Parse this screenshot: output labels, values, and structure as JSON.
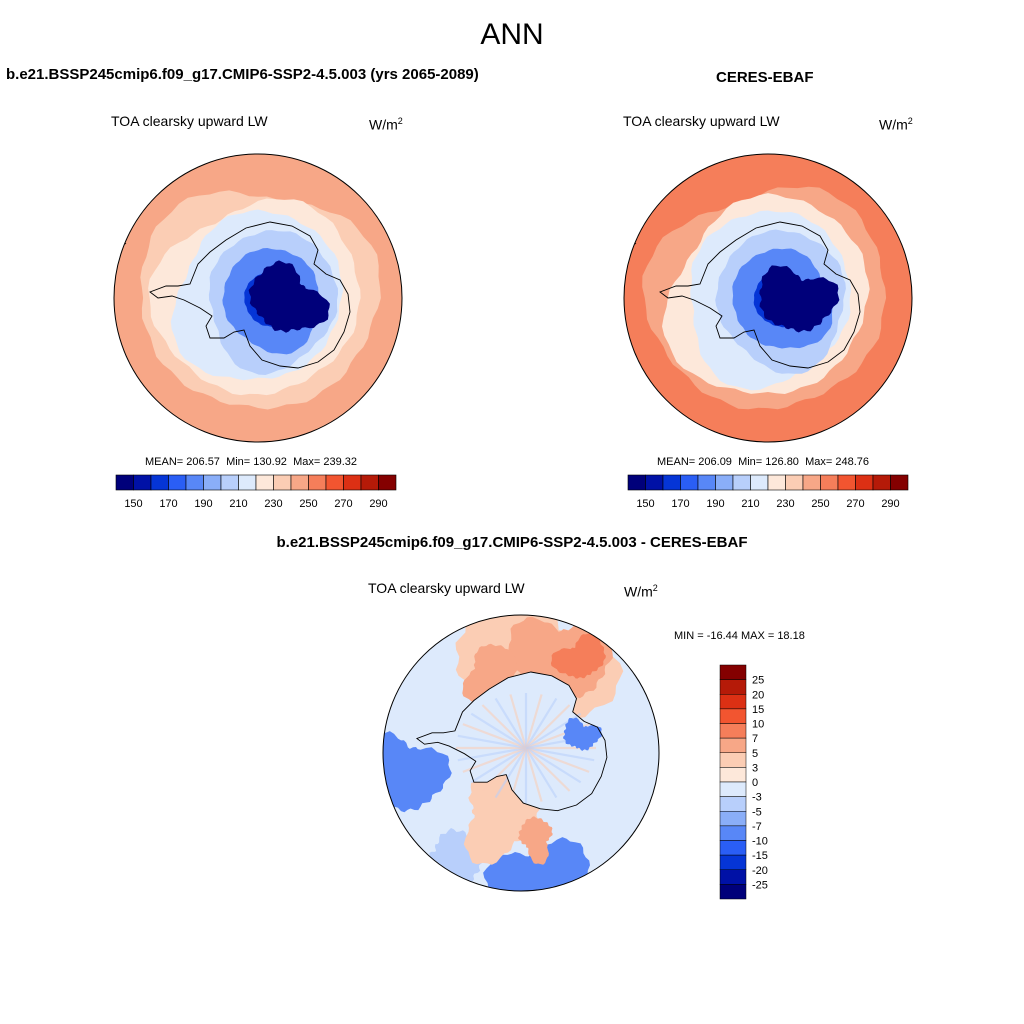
{
  "figure_title": "ANN",
  "panels": {
    "test": {
      "title": "b.e21.BSSP245cmip6.f09_g17.CMIP6-SSP2-4.5.003 (yrs 2065-2089)",
      "field": "TOA clearsky upward LW",
      "units": "W/m",
      "units_exp": "2",
      "mean_label": "MEAN=",
      "mean": "206.57",
      "min_label": "Min=",
      "min": "130.92",
      "max_label": "Max=",
      "max": "239.32"
    },
    "ref": {
      "title": "CERES-EBAF",
      "field": "TOA clearsky upward LW",
      "units": "W/m",
      "units_exp": "2",
      "mean_label": "MEAN=",
      "mean": "206.09",
      "min_label": "Min=",
      "min": "126.80",
      "max_label": "Max=",
      "max": "248.76"
    },
    "diff": {
      "title": "b.e21.BSSP245cmip6.f09_g17.CMIP6-SSP2-4.5.003 - CERES-EBAF",
      "field": "TOA clearsky upward LW",
      "units": "W/m",
      "units_exp": "2",
      "range_text": "MIN = -16.44 MAX =  18.18"
    }
  },
  "chart_data": [
    {
      "type": "heatmap",
      "projection": "south polar stereographic",
      "panel": "test",
      "title": "b.e21.BSSP245cmip6.f09_g17.CMIP6-SSP2-4.5.003 (yrs 2065-2089)",
      "variable": "TOA clearsky upward LW",
      "units": "W/m2",
      "mean": 206.57,
      "min": 130.92,
      "max": 239.32,
      "colorbar_levels": [
        140,
        150,
        160,
        170,
        180,
        190,
        200,
        210,
        220,
        230,
        240,
        250,
        260,
        270,
        280,
        290
      ],
      "colorbar_tick_labels": [
        "150",
        "170",
        "190",
        "210",
        "230",
        "250",
        "270",
        "290"
      ],
      "colorbar_colors": [
        "#00007a",
        "#0011a6",
        "#0535d6",
        "#2a5ef5",
        "#5887f7",
        "#8aaef8",
        "#b8cffb",
        "#ddeafc",
        "#fde8da",
        "#fbcdb4",
        "#f7a787",
        "#f57e5a",
        "#f25530",
        "#dc3014",
        "#b51a08",
        "#840000"
      ],
      "zonal_field_estimate": [
        {
          "lat": -90,
          "value": 140
        },
        {
          "lat": -80,
          "value": 155
        },
        {
          "lat": -72,
          "value": 175
        },
        {
          "lat": -66,
          "value": 192
        },
        {
          "lat": -60,
          "value": 203
        },
        {
          "lat": -55,
          "value": 215
        },
        {
          "lat": -50,
          "value": 228
        },
        {
          "lat": -45,
          "value": 235
        }
      ]
    },
    {
      "type": "heatmap",
      "projection": "south polar stereographic",
      "panel": "ref",
      "title": "CERES-EBAF",
      "variable": "TOA clearsky upward LW",
      "units": "W/m2",
      "mean": 206.09,
      "min": 126.8,
      "max": 248.76,
      "colorbar_levels": [
        140,
        150,
        160,
        170,
        180,
        190,
        200,
        210,
        220,
        230,
        240,
        250,
        260,
        270,
        280,
        290
      ],
      "colorbar_tick_labels": [
        "150",
        "170",
        "190",
        "210",
        "230",
        "250",
        "270",
        "290"
      ],
      "colorbar_colors": [
        "#00007a",
        "#0011a6",
        "#0535d6",
        "#2a5ef5",
        "#5887f7",
        "#8aaef8",
        "#b8cffb",
        "#ddeafc",
        "#fde8da",
        "#fbcdb4",
        "#f7a787",
        "#f57e5a",
        "#f25530",
        "#dc3014",
        "#b51a08",
        "#840000"
      ],
      "zonal_field_estimate": [
        {
          "lat": -90,
          "value": 135
        },
        {
          "lat": -80,
          "value": 150
        },
        {
          "lat": -72,
          "value": 172
        },
        {
          "lat": -66,
          "value": 190
        },
        {
          "lat": -60,
          "value": 205
        },
        {
          "lat": -55,
          "value": 218
        },
        {
          "lat": -50,
          "value": 232
        },
        {
          "lat": -45,
          "value": 242
        }
      ]
    },
    {
      "type": "heatmap",
      "projection": "south polar stereographic",
      "panel": "diff",
      "title": "b.e21.BSSP245cmip6.f09_g17.CMIP6-SSP2-4.5.003 - CERES-EBAF",
      "variable": "TOA clearsky upward LW",
      "units": "W/m2",
      "min": -16.44,
      "max": 18.18,
      "colorbar_tick_labels": [
        "25",
        "20",
        "15",
        "10",
        "7",
        "5",
        "3",
        "0",
        "-3",
        "-5",
        "-7",
        "-10",
        "-15",
        "-20",
        "-25"
      ],
      "colorbar_colors": [
        "#840000",
        "#b51a08",
        "#dc3014",
        "#f25530",
        "#f57e5a",
        "#f7a787",
        "#fbcdb4",
        "#fde8da",
        "#ddeafc",
        "#b8cffb",
        "#8aaef8",
        "#5887f7",
        "#2a5ef5",
        "#0535d6",
        "#0011a6",
        "#00007a"
      ]
    }
  ],
  "colors": {
    "land_outline": "#000000",
    "map_border": "#000000"
  }
}
